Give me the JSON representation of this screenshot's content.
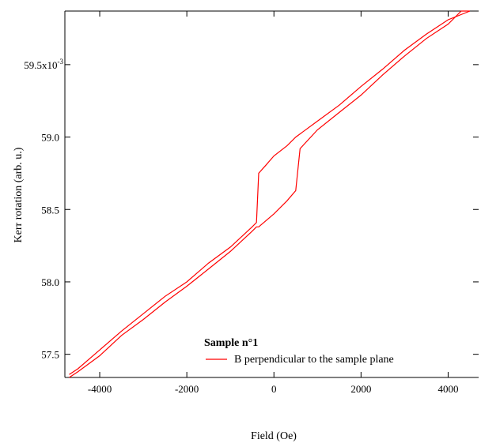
{
  "chart_data": {
    "type": "line",
    "title": "",
    "xlabel": "Field (Oe)",
    "ylabel": "Kerr rotation (arb. u.)",
    "xlim": [
      -4800,
      4700
    ],
    "ylim": [
      57.34,
      59.87
    ],
    "x_ticks": [
      {
        "value": -4000,
        "label": "-4000"
      },
      {
        "value": -2000,
        "label": "-2000"
      },
      {
        "value": 0,
        "label": "0"
      },
      {
        "value": 2000,
        "label": "2000"
      },
      {
        "value": 4000,
        "label": "4000"
      }
    ],
    "y_ticks": [
      {
        "value": 57.5,
        "label": "57.5"
      },
      {
        "value": 58.0,
        "label": "58.0"
      },
      {
        "value": 58.5,
        "label": "58.5"
      },
      {
        "value": 59.0,
        "label": "59.0"
      },
      {
        "value": 59.5,
        "label": "59.5x10",
        "sup": "-3"
      }
    ],
    "grid": false,
    "legend": {
      "title": "Sample n°1",
      "entries": [
        {
          "label": "B perpendicular to the sample plane",
          "color": "#ff0000"
        }
      ]
    },
    "series": [
      {
        "name": "B perpendicular to the sample plane",
        "color": "#ff0000",
        "branches": [
          {
            "x": [
              -4700,
              -4500,
              -4000,
              -3500,
              -3000,
              -2500,
              -2000,
              -1500,
              -1000,
              -500,
              -400,
              -350,
              0,
              300,
              500,
              600,
              1000,
              1500,
              2000,
              2500,
              3000,
              3500,
              4000,
              4300,
              4500
            ],
            "y": [
              57.34,
              57.38,
              57.49,
              57.63,
              57.74,
              57.86,
              57.97,
              58.09,
              58.21,
              58.35,
              58.38,
              58.38,
              58.47,
              58.56,
              58.63,
              58.92,
              59.05,
              59.17,
              59.29,
              59.43,
              59.56,
              59.68,
              59.78,
              59.87,
              59.87
            ]
          },
          {
            "x": [
              4500,
              4000,
              3500,
              3000,
              2500,
              2000,
              1500,
              1000,
              500,
              300,
              0,
              -200,
              -350,
              -400,
              -500,
              -1000,
              -1500,
              -2000,
              -2500,
              -3000,
              -3500,
              -4000,
              -4500,
              -4700
            ],
            "y": [
              59.87,
              59.81,
              59.71,
              59.6,
              59.47,
              59.35,
              59.22,
              59.11,
              59.0,
              58.94,
              58.87,
              58.8,
              58.75,
              58.41,
              58.38,
              58.24,
              58.13,
              58.0,
              57.9,
              57.78,
              57.66,
              57.53,
              57.4,
              57.36
            ]
          }
        ]
      }
    ]
  }
}
